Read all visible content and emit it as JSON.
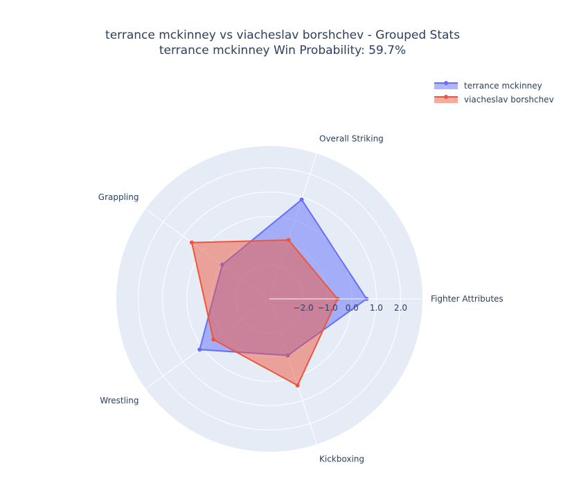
{
  "chart_data": {
    "type": "radar",
    "title_line1": "terrance mckinney vs viacheslav borshchev - Grouped Stats",
    "title_line2": "terrance mckinney Win Probability: 59.7%",
    "categories": [
      "Fighter Attributes",
      "Overall Striking",
      "Grappling",
      "Wrestling",
      "Kickboxing"
    ],
    "radial_range": [
      -3.4,
      2.9
    ],
    "radial_ticks": [
      "−2.0",
      "−1.0",
      "0.0",
      "1.0",
      "2.0"
    ],
    "radial_tick_values": [
      -2,
      -1,
      0,
      1,
      2
    ],
    "grid": true,
    "legend_position": "top-right",
    "series": [
      {
        "name": "terrance mckinney",
        "color": "#636efa",
        "values": [
          0.6,
          0.9,
          -1.0,
          0.15,
          -0.95
        ]
      },
      {
        "name": "viacheslav borshchev",
        "color": "#ef553b",
        "values": [
          -0.6,
          -0.85,
          0.55,
          -0.55,
          0.35
        ]
      }
    ]
  }
}
